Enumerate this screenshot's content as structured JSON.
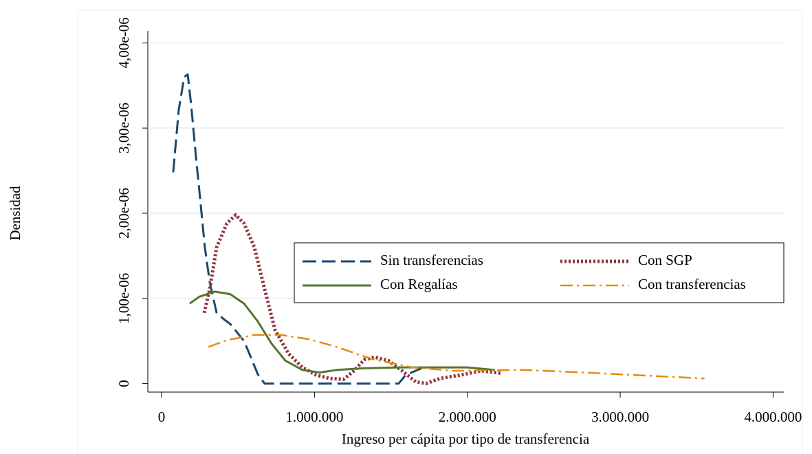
{
  "chart_data": {
    "type": "line",
    "xlabel": "Ingreso per cápita por tipo de transferencia",
    "ylabel": "Densidad",
    "xlim": [
      -90000,
      4070000
    ],
    "ylim": [
      -1e-07,
      4.14e-06
    ],
    "xticks": [
      0,
      {
        "value": 1000000,
        "label": "1.000.000"
      },
      {
        "value": 2000000,
        "label": "2.000.000"
      },
      {
        "value": 3000000,
        "label": "3.000.000"
      },
      {
        "value": 4000000,
        "label": "4.000.000"
      }
    ],
    "yticks": [
      0,
      {
        "value": 1e-06,
        "label": "1,00e-06"
      },
      {
        "value": 2e-06,
        "label": "2,00e-06"
      },
      {
        "value": 3e-06,
        "label": "3,00e-06"
      },
      {
        "value": 4e-06,
        "label": "4,00e-06"
      }
    ],
    "grid": true,
    "legend": "right",
    "series": [
      {
        "name": "Sin transferencias",
        "color": "#1a476f",
        "dash": "dashed",
        "x": [
          76000,
          112000,
          148000,
          171000,
          193000,
          225000,
          256000,
          283000,
          315000,
          360000,
          404000,
          449000,
          494000,
          539000,
          584000,
          629000,
          674000,
          1551000,
          1596000,
          1700000
        ],
        "values": [
          2.48e-06,
          3.21e-06,
          3.6e-06,
          3.63e-06,
          3.28e-06,
          2.66e-06,
          2.1e-06,
          1.6e-06,
          1.19e-06,
          8.3e-07,
          7.6e-07,
          7e-07,
          6e-07,
          5e-07,
          3.1e-07,
          1.1e-07,
          0,
          0,
          1e-07,
          1.8e-07
        ]
      },
      {
        "name": "Con SGP",
        "color": "#90353b",
        "dash": "dotted",
        "x": [
          279000,
          315000,
          360000,
          427000,
          485000,
          539000,
          607000,
          674000,
          742000,
          831000,
          921000,
          1011000,
          1101000,
          1191000,
          1258000,
          1326000,
          1393000,
          1483000,
          1573000,
          1663000,
          1730000,
          1820000,
          1955000,
          2090000,
          2225000
        ],
        "values": [
          8.3e-07,
          1.11e-06,
          1.6e-06,
          1.88e-06,
          1.98e-06,
          1.88e-06,
          1.6e-06,
          1.11e-06,
          6.3e-07,
          3.5e-07,
          1.9e-07,
          1e-07,
          6e-08,
          5e-08,
          1.5e-07,
          2.8e-07,
          3.1e-07,
          2.7e-07,
          1.5e-07,
          2e-08,
          0,
          6e-08,
          1e-07,
          1.5e-07,
          1.2e-07
        ]
      },
      {
        "name": "Con Regalías",
        "color": "#55752f",
        "dash": "solid",
        "x": [
          184000,
          247000,
          346000,
          449000,
          539000,
          629000,
          719000,
          809000,
          921000,
          1034000,
          1146000,
          1326000,
          1551000,
          1730000,
          2000000,
          2180000
        ],
        "values": [
          9.4e-07,
          1.02e-06,
          1.08e-06,
          1.05e-06,
          9.4e-07,
          7.3e-07,
          4.7e-07,
          2.7e-07,
          1.6e-07,
          1.3e-07,
          1.6e-07,
          1.8e-07,
          1.9e-07,
          1.9e-07,
          1.9e-07,
          1.6e-07
        ]
      },
      {
        "name": "Con transferencias",
        "color": "#e8890c",
        "dash": "dashdot",
        "x": [
          306000,
          427000,
          607000,
          787000,
          966000,
          1146000,
          1371000,
          1640000,
          1910000,
          2360000,
          2764000,
          3213000,
          3551000
        ],
        "values": [
          4.3e-07,
          5.1e-07,
          5.7e-07,
          5.7e-07,
          5.2e-07,
          4.3e-07,
          2.9e-07,
          1.9e-07,
          1.5e-07,
          1.6e-07,
          1.3e-07,
          9e-08,
          6e-08
        ]
      }
    ]
  }
}
